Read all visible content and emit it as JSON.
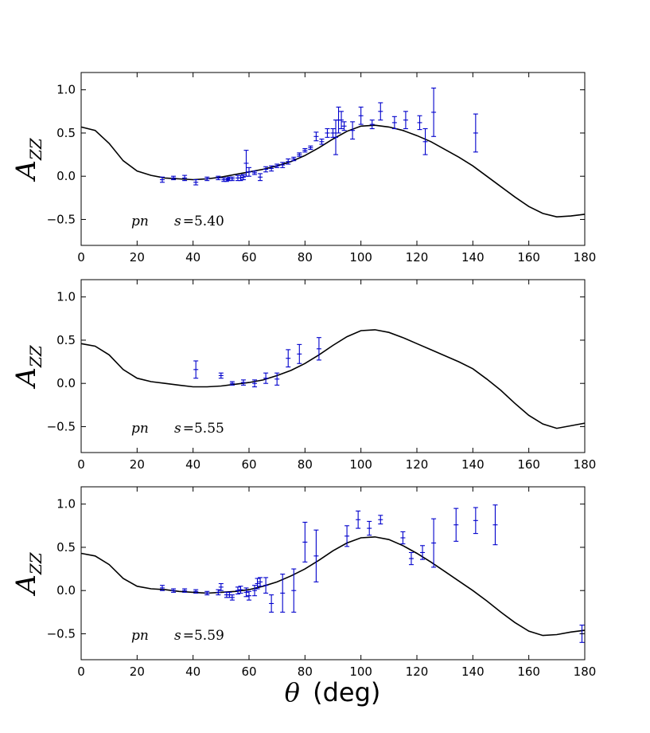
{
  "figure": {
    "xlabel_symbol": "θ",
    "xlabel_unit": "(deg)"
  },
  "chart_data": [
    {
      "type": "line",
      "panel": "top",
      "ylabel": "A",
      "ylabel_sub": "ZZ",
      "annotation_reaction": "pn",
      "annotation_s_label": "s",
      "annotation_s_value": "=5.40",
      "xlim": [
        0,
        180
      ],
      "ylim": [
        -0.8,
        1.2
      ],
      "xticks": [
        0,
        20,
        40,
        60,
        80,
        100,
        120,
        140,
        160,
        180
      ],
      "yticks": [
        1.0,
        0.5,
        0.0,
        -0.5
      ],
      "ytick_labels": [
        "1.0",
        "0.5",
        "0.0",
        "−0.5"
      ],
      "xtick_labels": [
        "0",
        "20",
        "40",
        "60",
        "80",
        "100",
        "120",
        "140",
        "160",
        "180"
      ],
      "curve": {
        "name": "model",
        "color": "#000000",
        "x": [
          0,
          5,
          10,
          15,
          20,
          25,
          30,
          35,
          40,
          45,
          50,
          55,
          60,
          65,
          70,
          75,
          80,
          85,
          90,
          95,
          100,
          105,
          110,
          115,
          120,
          125,
          130,
          135,
          140,
          145,
          150,
          155,
          160,
          165,
          170,
          175,
          180
        ],
        "y": [
          0.57,
          0.53,
          0.38,
          0.18,
          0.06,
          0.01,
          -0.02,
          -0.03,
          -0.04,
          -0.03,
          -0.01,
          0.02,
          0.05,
          0.08,
          0.12,
          0.17,
          0.24,
          0.33,
          0.43,
          0.52,
          0.58,
          0.59,
          0.57,
          0.53,
          0.47,
          0.4,
          0.31,
          0.22,
          0.12,
          0.0,
          -0.12,
          -0.24,
          -0.35,
          -0.43,
          -0.47,
          -0.46,
          -0.44
        ]
      },
      "points": {
        "name": "data",
        "color": "#0000cc",
        "x": [
          29,
          33,
          37,
          41,
          45,
          49,
          51,
          52,
          53,
          54,
          56,
          57,
          58,
          59,
          60,
          62,
          64,
          66,
          68,
          70,
          72,
          74,
          76,
          78,
          80,
          82,
          84,
          86,
          88,
          90,
          91,
          92,
          93,
          94,
          97,
          100,
          104,
          107,
          112,
          116,
          121,
          123,
          126,
          141
        ],
        "y": [
          -0.04,
          -0.02,
          -0.02,
          -0.07,
          -0.03,
          -0.02,
          -0.04,
          -0.04,
          -0.03,
          -0.03,
          -0.02,
          -0.02,
          -0.01,
          0.15,
          0.05,
          0.04,
          -0.01,
          0.08,
          0.09,
          0.12,
          0.13,
          0.17,
          0.2,
          0.25,
          0.3,
          0.33,
          0.46,
          0.4,
          0.5,
          0.5,
          0.45,
          0.65,
          0.65,
          0.58,
          0.53,
          0.7,
          0.6,
          0.75,
          0.62,
          0.65,
          0.62,
          0.4,
          0.74,
          0.5
        ],
        "err": [
          0.03,
          0.02,
          0.03,
          0.03,
          0.02,
          0.02,
          0.02,
          0.02,
          0.02,
          0.02,
          0.03,
          0.03,
          0.03,
          0.15,
          0.05,
          0.02,
          0.04,
          0.03,
          0.03,
          0.02,
          0.03,
          0.03,
          0.02,
          0.02,
          0.02,
          0.02,
          0.05,
          0.03,
          0.05,
          0.05,
          0.2,
          0.15,
          0.1,
          0.05,
          0.1,
          0.1,
          0.05,
          0.1,
          0.07,
          0.1,
          0.08,
          0.15,
          0.28,
          0.22
        ]
      }
    },
    {
      "type": "line",
      "panel": "middle",
      "ylabel": "A",
      "ylabel_sub": "ZZ",
      "annotation_reaction": "pn",
      "annotation_s_label": "s",
      "annotation_s_value": "=5.55",
      "xlim": [
        0,
        180
      ],
      "ylim": [
        -0.8,
        1.2
      ],
      "xticks": [
        0,
        20,
        40,
        60,
        80,
        100,
        120,
        140,
        160,
        180
      ],
      "yticks": [
        1.0,
        0.5,
        0.0,
        -0.5
      ],
      "ytick_labels": [
        "1.0",
        "0.5",
        "0.0",
        "−0.5"
      ],
      "xtick_labels": [
        "0",
        "20",
        "40",
        "60",
        "80",
        "100",
        "120",
        "140",
        "160",
        "180"
      ],
      "curve": {
        "name": "model",
        "color": "#000000",
        "x": [
          0,
          5,
          10,
          15,
          20,
          25,
          30,
          35,
          40,
          45,
          50,
          55,
          60,
          65,
          70,
          75,
          80,
          85,
          90,
          95,
          100,
          105,
          110,
          115,
          120,
          125,
          130,
          135,
          140,
          145,
          150,
          155,
          160,
          165,
          170,
          175,
          180
        ],
        "y": [
          0.46,
          0.43,
          0.33,
          0.16,
          0.06,
          0.02,
          0.0,
          -0.02,
          -0.04,
          -0.04,
          -0.03,
          -0.01,
          0.01,
          0.04,
          0.09,
          0.15,
          0.23,
          0.33,
          0.44,
          0.54,
          0.61,
          0.62,
          0.59,
          0.53,
          0.46,
          0.39,
          0.32,
          0.25,
          0.17,
          0.05,
          -0.08,
          -0.23,
          -0.37,
          -0.47,
          -0.52,
          -0.49,
          -0.46
        ]
      },
      "points": {
        "name": "data",
        "color": "#0000cc",
        "x": [
          41,
          50,
          54,
          58,
          62,
          66,
          70,
          74,
          78,
          85
        ],
        "y": [
          0.16,
          0.09,
          0.0,
          0.01,
          0.0,
          0.06,
          0.05,
          0.29,
          0.34,
          0.4
        ],
        "err": [
          0.1,
          0.03,
          0.02,
          0.03,
          0.04,
          0.06,
          0.07,
          0.1,
          0.11,
          0.13
        ]
      }
    },
    {
      "type": "line",
      "panel": "bottom",
      "ylabel": "A",
      "ylabel_sub": "ZZ",
      "annotation_reaction": "pn",
      "annotation_s_label": "s",
      "annotation_s_value": "=5.59",
      "xlim": [
        0,
        180
      ],
      "ylim": [
        -0.8,
        1.2
      ],
      "xticks": [
        0,
        20,
        40,
        60,
        80,
        100,
        120,
        140,
        160,
        180
      ],
      "yticks": [
        1.0,
        0.5,
        0.0,
        -0.5
      ],
      "ytick_labels": [
        "1.0",
        "0.5",
        "0.0",
        "−0.5"
      ],
      "xtick_labels": [
        "0",
        "20",
        "40",
        "60",
        "80",
        "100",
        "120",
        "140",
        "160",
        "180"
      ],
      "curve": {
        "name": "model",
        "color": "#000000",
        "x": [
          0,
          5,
          10,
          15,
          20,
          25,
          30,
          35,
          40,
          45,
          50,
          55,
          60,
          65,
          70,
          75,
          80,
          85,
          90,
          95,
          100,
          105,
          110,
          115,
          120,
          125,
          130,
          135,
          140,
          145,
          150,
          155,
          160,
          165,
          170,
          175,
          180
        ],
        "y": [
          0.43,
          0.4,
          0.3,
          0.14,
          0.05,
          0.02,
          0.01,
          -0.01,
          -0.02,
          -0.03,
          -0.02,
          -0.01,
          0.01,
          0.05,
          0.1,
          0.17,
          0.25,
          0.35,
          0.46,
          0.55,
          0.61,
          0.62,
          0.59,
          0.52,
          0.43,
          0.33,
          0.22,
          0.11,
          0.0,
          -0.12,
          -0.25,
          -0.37,
          -0.47,
          -0.52,
          -0.51,
          -0.48,
          -0.46
        ]
      },
      "points": {
        "name": "data",
        "color": "#0000cc",
        "x": [
          29,
          33,
          37,
          41,
          45,
          49,
          50,
          52,
          53,
          54,
          56,
          57,
          59,
          60,
          62,
          63,
          64,
          66,
          68,
          72,
          76,
          80,
          84,
          95,
          99,
          103,
          107,
          115,
          118,
          122,
          126,
          134,
          141,
          148,
          179
        ],
        "y": [
          0.03,
          0.0,
          0.0,
          -0.01,
          -0.03,
          -0.02,
          0.04,
          -0.05,
          -0.05,
          -0.08,
          0.0,
          0.01,
          -0.02,
          -0.06,
          0.0,
          0.08,
          0.1,
          0.06,
          -0.15,
          -0.03,
          0.0,
          0.56,
          0.4,
          0.63,
          0.82,
          0.72,
          0.82,
          0.61,
          0.37,
          0.44,
          0.55,
          0.76,
          0.81,
          0.76,
          -0.5
        ],
        "err": [
          0.03,
          0.02,
          0.02,
          0.02,
          0.02,
          0.03,
          0.04,
          0.03,
          0.03,
          0.03,
          0.04,
          0.04,
          0.05,
          0.05,
          0.06,
          0.06,
          0.05,
          0.09,
          0.1,
          0.22,
          0.25,
          0.23,
          0.3,
          0.12,
          0.1,
          0.08,
          0.05,
          0.07,
          0.07,
          0.08,
          0.28,
          0.19,
          0.15,
          0.23,
          0.1
        ]
      }
    }
  ]
}
